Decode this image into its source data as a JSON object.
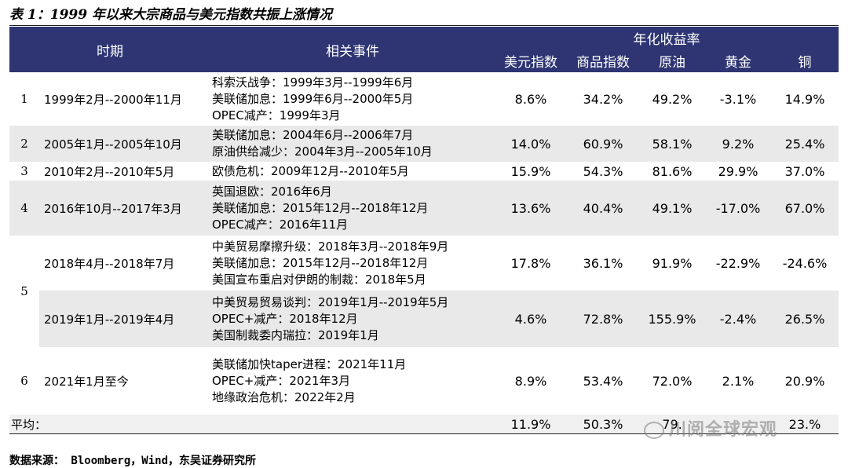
{
  "title": "表 1：1999 年以来大宗商品与美元指数共振上涨情况",
  "headers": {
    "period": "时期",
    "events": "相关事件",
    "group": "年化收益率",
    "cols": [
      "美元指数",
      "商品指数",
      "原油",
      "黄金",
      "铜"
    ]
  },
  "rows": [
    {
      "idx": "1",
      "period": "1999年2月--2000年11月",
      "events": [
        "科索沃战争：1999年3月--1999年6月",
        "美联储加息：1999年6月--2000年5月",
        "OPEC减产：1999年3月"
      ],
      "vals": [
        "8.6%",
        "34.2%",
        "49.2%",
        "-3.1%",
        "14.9%"
      ]
    },
    {
      "idx": "2",
      "period": "2005年1月--2005年10月",
      "events": [
        "美联储加息：2004年6月--2006年7月",
        "原油供给减少：2004年3月--2005年10月"
      ],
      "vals": [
        "14.0%",
        "60.9%",
        "58.1%",
        "9.2%",
        "25.4%"
      ]
    },
    {
      "idx": "3",
      "period": "2010年2月--2010年5月",
      "events": [
        "欧债危机：2009年12月--2010年5月"
      ],
      "vals": [
        "15.9%",
        "54.3%",
        "81.6%",
        "29.9%",
        "37.0%"
      ]
    },
    {
      "idx": "4",
      "period": "2016年10月--2017年3月",
      "events": [
        "英国退欧：2016年6月",
        "美联储加息：2015年12月--2018年12月",
        "OPEC减产：2016年11月"
      ],
      "vals": [
        "13.6%",
        "40.4%",
        "49.1%",
        "-17.0%",
        "67.0%"
      ]
    },
    {
      "idx": "5",
      "period": "2018年4月--2018年7月",
      "events": [
        "中美贸易摩擦升级：2018年3月--2018年9月",
        "美联储加息：2015年12月--2018年12月",
        "美国宣布重启对伊朗的制裁：2018年5月"
      ],
      "vals": [
        "17.8%",
        "36.1%",
        "91.9%",
        "-22.9%",
        "-24.6%"
      ]
    },
    {
      "idx": "",
      "period": "2019年1月--2019年4月",
      "events": [
        "中美贸易贸易谈判：2019年1月--2019年5月",
        "OPEC+减产：2018年12月",
        "美国制裁委内瑞拉：2019年1月"
      ],
      "vals": [
        "4.6%",
        "72.8%",
        "155.9%",
        "-2.4%",
        "26.5%"
      ]
    },
    {
      "idx": "6",
      "period": "2021年1月至今",
      "events": [
        "美联储加快taper进程：2021年11月",
        "OPEC+减产：2021年3月",
        "地缘政治危机：2022年2月"
      ],
      "vals": [
        "8.9%",
        "53.4%",
        "72.0%",
        "2.1%",
        "20.9%"
      ]
    }
  ],
  "average": {
    "label": "平均：",
    "vals": [
      "11.9%",
      "50.3%",
      "79.",
      "",
      "23.%"
    ]
  },
  "watermark": "川阅全球宏观",
  "source": "数据来源： Bloomberg，Wind，东吴证券研究所"
}
